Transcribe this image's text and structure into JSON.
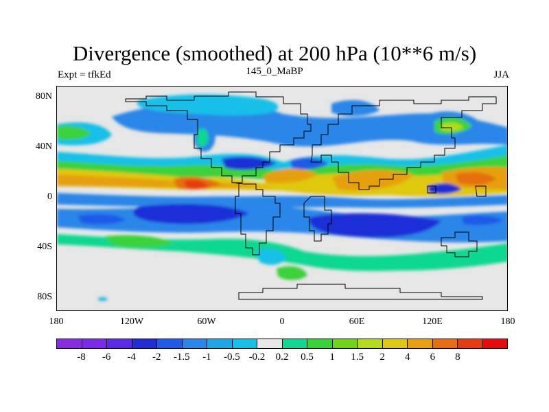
{
  "title": "Divergence (smoothed) at 200 hPa (10**6 m/s)",
  "left_label": "Expt = tfkEd",
  "center_label": "145_0_MaBP",
  "right_label": "JJA",
  "lat_ticks": [
    "80N",
    "40N",
    "0",
    "40S",
    "80S"
  ],
  "lon_ticks": [
    "180",
    "120W",
    "60W",
    "0",
    "60E",
    "120E",
    "180"
  ],
  "colorbar": {
    "colors": [
      "#8a2be2",
      "#7a2ae8",
      "#5a2ae6",
      "#1f2fd8",
      "#1f5ae8",
      "#2a86e8",
      "#1ea6e6",
      "#15c0e8",
      "#e6e6e6",
      "#0fd890",
      "#3ad23a",
      "#72d41a",
      "#b4dc18",
      "#e0c810",
      "#e6a010",
      "#e66e10",
      "#e63a10",
      "#e60c0c"
    ],
    "labels": [
      "-8",
      "-6",
      "-4",
      "-2",
      "-1.5",
      "-1",
      "-0.5",
      "-0.2",
      "0.2",
      "0.5",
      "1",
      "1.5",
      "2",
      "4",
      "6",
      "8"
    ]
  }
}
